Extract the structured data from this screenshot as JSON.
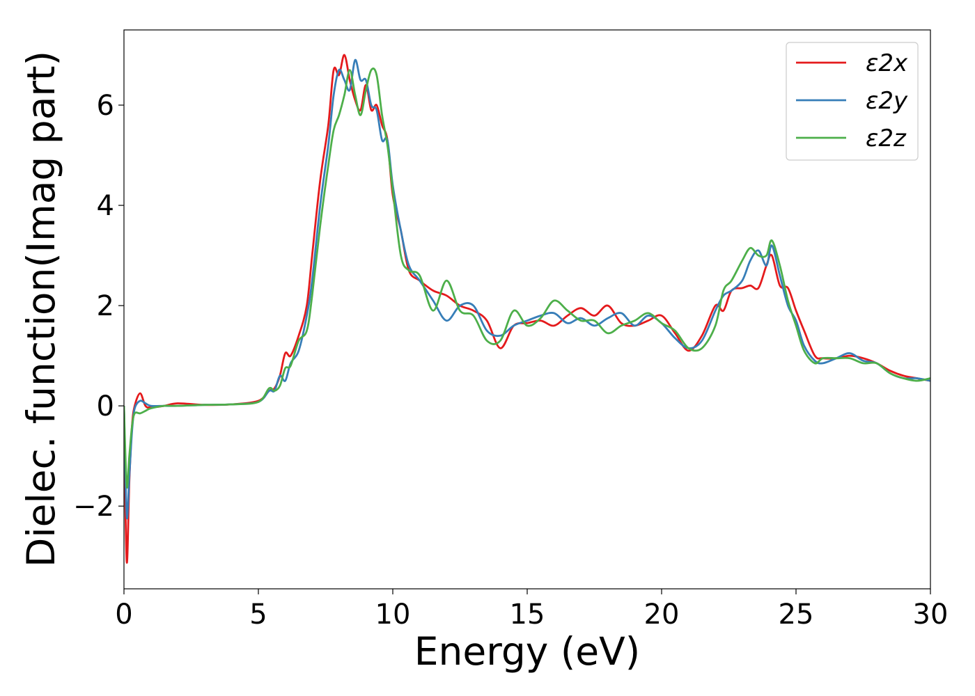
{
  "chart_data": {
    "type": "line",
    "title": "",
    "xlabel": "Energy (eV)",
    "ylabel": "Dielec. function(Imag part)",
    "xlim": [
      0,
      30
    ],
    "ylim": [
      -3.65,
      7.5
    ],
    "xticks": [
      0,
      5,
      10,
      15,
      20,
      25,
      30
    ],
    "xtick_labels": [
      "0",
      "5",
      "10",
      "15",
      "20",
      "25",
      "30"
    ],
    "yticks": [
      -2,
      0,
      2,
      4,
      6
    ],
    "ytick_labels": [
      "−2",
      "0",
      "2",
      "4",
      "6"
    ],
    "grid": false,
    "legend_position": "top-right",
    "series": [
      {
        "name": "ε2x",
        "color": "#e41a1c",
        "x": [
          0.0,
          0.1,
          0.2,
          0.3,
          0.4,
          0.6,
          0.8,
          1.0,
          1.5,
          2.0,
          3.0,
          4.0,
          5.0,
          5.4,
          5.6,
          5.8,
          6.0,
          6.2,
          6.5,
          6.8,
          7.0,
          7.3,
          7.6,
          7.8,
          8.0,
          8.2,
          8.4,
          8.6,
          8.8,
          9.0,
          9.2,
          9.4,
          9.6,
          9.8,
          10.0,
          10.3,
          10.6,
          11.0,
          11.5,
          12.0,
          12.5,
          13.0,
          13.5,
          14.0,
          14.5,
          15.0,
          15.5,
          16.0,
          16.5,
          17.0,
          17.5,
          18.0,
          18.5,
          19.0,
          19.5,
          20.0,
          20.5,
          21.0,
          21.5,
          22.0,
          22.3,
          22.6,
          23.0,
          23.3,
          23.6,
          23.9,
          24.1,
          24.4,
          24.7,
          25.0,
          25.3,
          25.7,
          26.0,
          26.5,
          27.0,
          27.5,
          28.0,
          28.5,
          29.0,
          29.5,
          30.0
        ],
        "values": [
          0.0,
          -3.1,
          -1.5,
          -0.4,
          0.0,
          0.25,
          0.0,
          -0.03,
          0.0,
          0.05,
          0.02,
          0.03,
          0.1,
          0.3,
          0.35,
          0.6,
          1.05,
          1.0,
          1.4,
          2.0,
          3.0,
          4.5,
          5.6,
          6.7,
          6.6,
          7.0,
          6.5,
          6.1,
          5.9,
          6.4,
          5.9,
          6.0,
          5.6,
          5.3,
          4.2,
          3.5,
          2.7,
          2.5,
          2.3,
          2.2,
          2.0,
          1.9,
          1.7,
          1.15,
          1.6,
          1.65,
          1.7,
          1.6,
          1.8,
          1.95,
          1.8,
          2.0,
          1.65,
          1.6,
          1.7,
          1.8,
          1.45,
          1.1,
          1.4,
          2.0,
          1.9,
          2.3,
          2.35,
          2.4,
          2.35,
          2.8,
          3.0,
          2.4,
          2.35,
          1.9,
          1.5,
          1.0,
          0.95,
          0.95,
          1.0,
          0.95,
          0.85,
          0.7,
          0.6,
          0.55,
          0.5
        ]
      },
      {
        "name": "ε2y",
        "color": "#377eb8",
        "x": [
          0.0,
          0.1,
          0.2,
          0.3,
          0.4,
          0.6,
          0.8,
          1.0,
          1.5,
          2.0,
          3.0,
          4.0,
          5.0,
          5.4,
          5.6,
          5.8,
          6.0,
          6.2,
          6.5,
          6.8,
          7.0,
          7.3,
          7.6,
          7.8,
          8.0,
          8.2,
          8.4,
          8.6,
          8.8,
          9.0,
          9.2,
          9.4,
          9.6,
          9.8,
          10.0,
          10.3,
          10.6,
          11.0,
          11.5,
          12.0,
          12.5,
          13.0,
          13.5,
          14.0,
          14.5,
          15.0,
          15.5,
          16.0,
          16.5,
          17.0,
          17.5,
          18.0,
          18.5,
          19.0,
          19.5,
          20.0,
          20.5,
          21.0,
          21.5,
          22.0,
          22.3,
          22.6,
          23.0,
          23.3,
          23.6,
          23.9,
          24.1,
          24.4,
          24.7,
          25.0,
          25.3,
          25.7,
          26.0,
          26.5,
          27.0,
          27.5,
          28.0,
          28.5,
          29.0,
          29.5,
          30.0
        ],
        "values": [
          0.0,
          -2.2,
          -1.4,
          -0.5,
          -0.05,
          0.1,
          0.05,
          0.0,
          0.0,
          0.0,
          0.02,
          0.03,
          0.08,
          0.3,
          0.3,
          0.6,
          0.5,
          0.85,
          1.1,
          1.8,
          2.5,
          4.0,
          5.2,
          6.2,
          6.7,
          6.5,
          6.3,
          6.9,
          6.5,
          6.5,
          6.0,
          5.9,
          5.3,
          5.3,
          4.4,
          3.5,
          2.8,
          2.5,
          2.1,
          1.7,
          2.0,
          2.0,
          1.5,
          1.4,
          1.6,
          1.7,
          1.8,
          1.85,
          1.65,
          1.75,
          1.6,
          1.75,
          1.85,
          1.6,
          1.8,
          1.65,
          1.35,
          1.15,
          1.3,
          1.9,
          2.2,
          2.3,
          2.5,
          2.9,
          3.1,
          2.8,
          3.2,
          2.6,
          2.0,
          1.7,
          1.2,
          0.9,
          0.85,
          0.95,
          1.05,
          0.9,
          0.85,
          0.65,
          0.55,
          0.55,
          0.5
        ]
      },
      {
        "name": "ε2z",
        "color": "#4daf4a",
        "x": [
          0.0,
          0.1,
          0.2,
          0.3,
          0.4,
          0.6,
          0.8,
          1.0,
          1.5,
          2.0,
          3.0,
          4.0,
          5.0,
          5.4,
          5.6,
          5.8,
          6.0,
          6.2,
          6.5,
          6.8,
          7.0,
          7.3,
          7.6,
          7.8,
          8.0,
          8.2,
          8.4,
          8.6,
          8.8,
          9.0,
          9.2,
          9.4,
          9.6,
          9.8,
          10.0,
          10.3,
          10.6,
          11.0,
          11.5,
          12.0,
          12.5,
          13.0,
          13.5,
          14.0,
          14.5,
          15.0,
          15.5,
          16.0,
          16.5,
          17.0,
          17.5,
          18.0,
          18.5,
          19.0,
          19.5,
          20.0,
          20.5,
          21.0,
          21.5,
          22.0,
          22.3,
          22.6,
          23.0,
          23.3,
          23.6,
          23.9,
          24.1,
          24.4,
          24.7,
          25.0,
          25.3,
          25.7,
          26.0,
          26.5,
          27.0,
          27.5,
          28.0,
          28.5,
          29.0,
          29.5,
          30.0
        ],
        "values": [
          0.0,
          -1.6,
          -1.0,
          -0.4,
          -0.15,
          -0.15,
          -0.1,
          -0.05,
          0.0,
          0.0,
          0.02,
          0.03,
          0.08,
          0.35,
          0.3,
          0.4,
          0.75,
          0.8,
          1.3,
          1.5,
          2.2,
          3.6,
          4.8,
          5.5,
          5.8,
          6.2,
          6.7,
          6.2,
          5.8,
          6.3,
          6.7,
          6.6,
          5.8,
          5.2,
          4.3,
          3.0,
          2.7,
          2.6,
          1.9,
          2.5,
          1.9,
          1.8,
          1.3,
          1.3,
          1.9,
          1.6,
          1.75,
          2.1,
          1.9,
          1.7,
          1.7,
          1.45,
          1.6,
          1.7,
          1.85,
          1.65,
          1.5,
          1.15,
          1.15,
          1.6,
          2.3,
          2.5,
          2.9,
          3.15,
          3.0,
          3.0,
          3.3,
          2.8,
          2.1,
          1.6,
          1.1,
          0.85,
          0.95,
          0.95,
          0.95,
          0.85,
          0.85,
          0.65,
          0.55,
          0.5,
          0.55
        ]
      }
    ]
  }
}
